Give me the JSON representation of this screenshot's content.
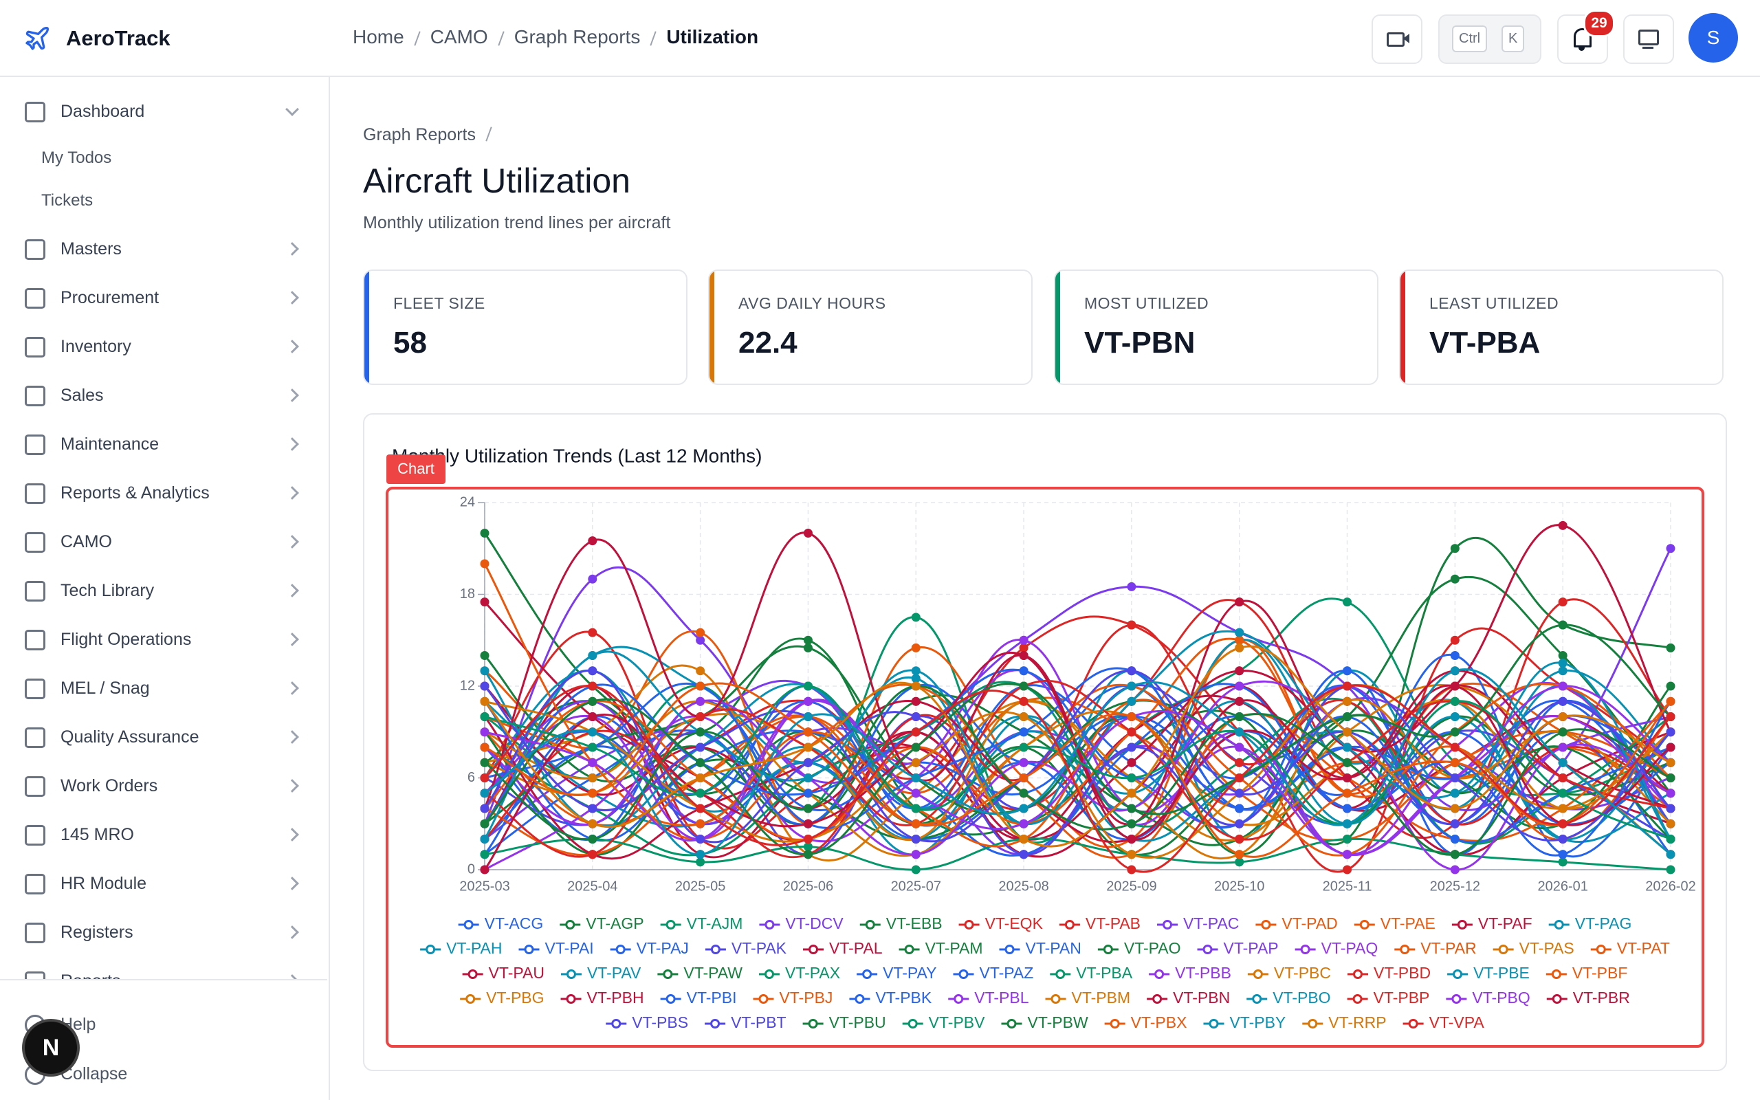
{
  "sidebar": {
    "brand": "AeroTrack",
    "nav": [
      "Dashboard",
      "Masters",
      "Procurement",
      "Inventory",
      "Sales",
      "Maintenance",
      "Reports & Analytics",
      "CAMO",
      "Tech Library",
      "Flight Operations",
      "MEL / Snag",
      "Quality Assurance",
      "Work Orders",
      "145 MRO",
      "HR Module",
      "Registers",
      "Reports"
    ],
    "sub": [
      "My Todos",
      "Tickets"
    ],
    "footer": [
      "Help",
      "Collapse"
    ],
    "badge": "N"
  },
  "header": {
    "breadcrumb": [
      "Home",
      "CAMO",
      "Graph Reports",
      "Utilization"
    ],
    "shortcut": [
      "Ctrl",
      "K"
    ],
    "notifications": 29,
    "avatar": "S"
  },
  "page": {
    "breadcrumb": "Graph Reports",
    "title": "Aircraft Utilization",
    "subtitle": "Monthly utilization trend lines per aircraft",
    "stats": [
      {
        "label": "FLEET SIZE",
        "value": 58,
        "color": "#2563eb"
      },
      {
        "label": "AVG DAILY HOURS",
        "value": 22.4,
        "color": "#d97706"
      },
      {
        "label": "MOST UTILIZED",
        "value": "VT-PBN",
        "color": "#059669"
      },
      {
        "label": "LEAST UTILIZED",
        "value": "VT-PBA",
        "color": "#dc2626"
      }
    ],
    "chart_tag": "Chart"
  },
  "chart_data": {
    "type": "line",
    "title": "Monthly Utilization Trends (Last 12 Months)",
    "categories": [
      "2025-03",
      "2025-04",
      "2025-05",
      "2025-06",
      "2025-07",
      "2025-08",
      "2025-09",
      "2025-10",
      "2025-11",
      "2025-12",
      "2026-01",
      "2026-02"
    ],
    "ylim": [
      0,
      24
    ],
    "yticks": [
      0,
      6,
      12,
      18,
      24
    ],
    "grid": true,
    "legend": "bottom",
    "series": [
      {
        "name": "VT-ACG",
        "color": "#2563eb",
        "values": [
          5,
          9,
          3,
          7,
          2,
          6,
          12,
          4,
          8,
          3,
          10,
          6
        ]
      },
      {
        "name": "VT-AGP",
        "color": "#15803d",
        "values": [
          22,
          12,
          9,
          15,
          4,
          3,
          8,
          10,
          2,
          21,
          16,
          14.5
        ]
      },
      {
        "name": "VT-AJM",
        "color": "#059669",
        "values": [
          10,
          6,
          12,
          4,
          16.5,
          2,
          9,
          13,
          17.5,
          7,
          5,
          8
        ]
      },
      {
        "name": "VT-DCV",
        "color": "#7c3aed",
        "values": [
          3,
          19,
          15,
          6,
          9,
          15,
          18.5,
          15.5,
          12,
          2,
          7,
          21
        ]
      },
      {
        "name": "VT-EBB",
        "color": "#15803d",
        "values": [
          7,
          11,
          5,
          9,
          3,
          8,
          1,
          6,
          10,
          19,
          14,
          5
        ]
      },
      {
        "name": "VT-EQK",
        "color": "#dc2626",
        "values": [
          12,
          4,
          8,
          11,
          6,
          14.5,
          16,
          9,
          0,
          15,
          12,
          7
        ]
      },
      {
        "name": "VT-PAB",
        "color": "#dc2626",
        "values": [
          6,
          15.5,
          2,
          5,
          8,
          4,
          11,
          17.5,
          6,
          3,
          17.5,
          10
        ]
      },
      {
        "name": "VT-PAC",
        "color": "#7c3aed",
        "values": [
          2,
          7,
          10,
          12,
          4,
          9,
          6,
          3,
          11,
          8,
          4,
          6
        ]
      },
      {
        "name": "VT-PAD",
        "color": "#ea580c",
        "values": [
          13,
          8,
          15.5,
          3,
          14.5,
          6,
          2,
          15,
          5,
          12,
          9,
          4
        ]
      },
      {
        "name": "VT-PAE",
        "color": "#ea580c",
        "values": [
          9,
          3,
          6,
          10,
          5,
          11,
          9,
          4,
          7,
          6,
          8,
          5
        ]
      },
      {
        "name": "VT-PAF",
        "color": "#be123c",
        "values": [
          17.5,
          10,
          6,
          2,
          9,
          1,
          5,
          12,
          4,
          12,
          6,
          3
        ]
      },
      {
        "name": "VT-PAG",
        "color": "#0891b2",
        "values": [
          4,
          14,
          12,
          7,
          12.5,
          3,
          13,
          2,
          13,
          5,
          13,
          7
        ]
      },
      {
        "name": "VT-PAH",
        "color": "#0891b2",
        "values": [
          11,
          5,
          3,
          8,
          1,
          10,
          4,
          15,
          7,
          11,
          2,
          9
        ]
      },
      {
        "name": "VT-PAI",
        "color": "#2563eb",
        "values": [
          8,
          2,
          11,
          4,
          7,
          5,
          10,
          6,
          12,
          3,
          9,
          1
        ]
      },
      {
        "name": "VT-PAJ",
        "color": "#2563eb",
        "values": [
          1,
          10,
          4,
          12,
          3,
          7,
          2,
          9,
          5,
          14,
          1,
          8
        ]
      },
      {
        "name": "VT-PAK",
        "color": "#4f46e5",
        "values": [
          6,
          3,
          9,
          1,
          10,
          4,
          12,
          7,
          3,
          9,
          6,
          2
        ]
      },
      {
        "name": "VT-PAL",
        "color": "#be123c",
        "values": [
          3,
          12,
          1,
          6,
          8,
          2,
          9,
          11,
          4,
          7,
          10,
          5
        ]
      },
      {
        "name": "VT-PAM",
        "color": "#15803d",
        "values": [
          14,
          6,
          8,
          3,
          11,
          9,
          4,
          2,
          10,
          6,
          3,
          12
        ]
      },
      {
        "name": "VT-PAN",
        "color": "#2563eb",
        "values": [
          2,
          8,
          5,
          11,
          4,
          12,
          7,
          3,
          13,
          1,
          11,
          4
        ]
      },
      {
        "name": "VT-PAO",
        "color": "#15803d",
        "values": [
          9,
          1,
          7,
          5,
          2,
          6,
          11,
          8,
          3,
          10,
          5,
          7
        ]
      },
      {
        "name": "VT-PAP",
        "color": "#7c3aed",
        "values": [
          5,
          11,
          3,
          9,
          7,
          1,
          8,
          5,
          12,
          4,
          8,
          10
        ]
      },
      {
        "name": "VT-PAQ",
        "color": "#9333ea",
        "values": [
          0,
          4,
          10,
          2,
          6,
          13,
          3,
          9,
          1,
          8,
          12,
          3
        ]
      },
      {
        "name": "VT-PAR",
        "color": "#ea580c",
        "values": [
          10,
          7,
          2,
          8,
          12,
          5,
          1,
          10,
          6,
          2,
          4,
          11
        ]
      },
      {
        "name": "VT-PAS",
        "color": "#d97706",
        "values": [
          7,
          9,
          13,
          1,
          5,
          11,
          6,
          2,
          9,
          12,
          7,
          1
        ]
      },
      {
        "name": "VT-PAT",
        "color": "#ea580c",
        "values": [
          4,
          1,
          6,
          10,
          3,
          8,
          12,
          5,
          2,
          7,
          9,
          6
        ]
      },
      {
        "name": "VT-PAU",
        "color": "#be123c",
        "values": [
          12,
          5,
          8,
          4,
          9,
          2,
          7,
          13,
          8,
          1,
          6,
          9
        ]
      },
      {
        "name": "VT-PAV",
        "color": "#0891b2",
        "values": [
          6,
          13,
          4,
          7,
          2,
          9,
          5,
          11,
          3,
          10,
          2,
          5
        ]
      },
      {
        "name": "VT-PAW",
        "color": "#15803d",
        "values": [
          3,
          8,
          10,
          14.5,
          6,
          4,
          10,
          1,
          9,
          5,
          8,
          2
        ]
      },
      {
        "name": "VT-PAX",
        "color": "#059669",
        "values": [
          8,
          4,
          1,
          6,
          9,
          12,
          3,
          7,
          11,
          2,
          5,
          10
        ]
      },
      {
        "name": "VT-PAY",
        "color": "#2563eb",
        "values": [
          1,
          6,
          9,
          3,
          12,
          7,
          10,
          4,
          8,
          6,
          11,
          3
        ]
      },
      {
        "name": "VT-PAZ",
        "color": "#2563eb",
        "values": [
          11,
          2,
          7,
          9,
          5,
          1,
          8,
          12,
          4,
          9,
          3,
          7
        ]
      },
      {
        "name": "VT-PBA",
        "color": "#059669",
        "values": [
          1,
          2,
          0.5,
          1.5,
          0,
          2,
          1,
          0.5,
          2,
          1,
          0.5,
          0
        ]
      },
      {
        "name": "VT-PBB",
        "color": "#9333ea",
        "values": [
          5,
          10,
          2,
          11,
          7,
          15,
          4,
          8,
          1,
          6,
          10,
          4
        ]
      },
      {
        "name": "VT-PBC",
        "color": "#d97706",
        "values": [
          9,
          6,
          11,
          5,
          1,
          8,
          10,
          3,
          7,
          11,
          4,
          9
        ]
      },
      {
        "name": "VT-PBD",
        "color": "#dc2626",
        "values": [
          2,
          9,
          5,
          1,
          10,
          6,
          16,
          7,
          11,
          3,
          8,
          5
        ]
      },
      {
        "name": "VT-PBE",
        "color": "#0891b2",
        "values": [
          13,
          3,
          8,
          12,
          4,
          10,
          2,
          6,
          9,
          4,
          12,
          2
        ]
      },
      {
        "name": "VT-PBF",
        "color": "#ea580c",
        "values": [
          4,
          11,
          6,
          2,
          8,
          3,
          9,
          15,
          5,
          8,
          2,
          10
        ]
      },
      {
        "name": "VT-PBG",
        "color": "#d97706",
        "values": [
          7,
          5,
          10,
          8,
          2,
          11,
          5,
          1,
          11,
          6,
          9,
          3
        ]
      },
      {
        "name": "VT-PBH",
        "color": "#be123c",
        "values": [
          10,
          1,
          4,
          7,
          11,
          5,
          2,
          9,
          6,
          13,
          7,
          4
        ]
      },
      {
        "name": "VT-PBI",
        "color": "#2563eb",
        "values": [
          6,
          8,
          12,
          3,
          6,
          9,
          13,
          4,
          10,
          2,
          5,
          8
        ]
      },
      {
        "name": "VT-PBJ",
        "color": "#ea580c",
        "values": [
          20,
          7,
          3,
          9,
          4,
          2,
          11,
          6,
          1,
          9,
          12,
          6
        ]
      },
      {
        "name": "VT-PBK",
        "color": "#2563eb",
        "values": [
          3,
          12,
          7,
          5,
          9,
          13,
          6,
          10,
          4,
          7,
          1,
          11
        ]
      },
      {
        "name": "VT-PBL",
        "color": "#9333ea",
        "values": [
          8,
          3,
          11,
          6,
          1,
          7,
          4,
          12,
          9,
          0,
          8,
          5
        ]
      },
      {
        "name": "VT-PBM",
        "color": "#d97706",
        "values": [
          11,
          9,
          4,
          2,
          7,
          10,
          1,
          5,
          12,
          8,
          4,
          9
        ]
      },
      {
        "name": "VT-PBN",
        "color": "#be123c",
        "values": [
          4,
          21.5,
          10,
          22,
          6,
          14,
          3,
          17.5,
          8,
          12,
          22.5,
          9
        ]
      },
      {
        "name": "VT-PBO",
        "color": "#0891b2",
        "values": [
          2,
          14,
          9,
          6,
          13,
          3,
          11,
          15.5,
          8,
          5,
          13.5,
          2
        ]
      },
      {
        "name": "VT-PBP",
        "color": "#dc2626",
        "values": [
          5,
          1,
          10,
          8,
          3,
          12,
          9,
          2,
          7,
          11,
          6,
          4
        ]
      },
      {
        "name": "VT-PBQ",
        "color": "#9333ea",
        "values": [
          9,
          7,
          2,
          11,
          5,
          3,
          10,
          8,
          1,
          6,
          12,
          7
        ]
      },
      {
        "name": "VT-PBR",
        "color": "#be123c",
        "values": [
          0,
          10,
          5,
          3,
          8,
          14,
          2,
          11,
          6,
          12,
          3,
          8
        ]
      },
      {
        "name": "VT-PBS",
        "color": "#4f46e5",
        "values": [
          12,
          4,
          8,
          10,
          2,
          6,
          13,
          5,
          9,
          3,
          11,
          4
        ]
      },
      {
        "name": "VT-PBT",
        "color": "#4f46e5",
        "values": [
          4,
          13,
          2,
          7,
          10,
          1,
          8,
          3,
          12,
          6,
          2,
          9
        ]
      },
      {
        "name": "VT-PBU",
        "color": "#15803d",
        "values": [
          7,
          2,
          9,
          4,
          12,
          5,
          3,
          10,
          7,
          1,
          9,
          6
        ]
      },
      {
        "name": "VT-PBV",
        "color": "#059669",
        "values": [
          10,
          8,
          5,
          12,
          4,
          8,
          6,
          9,
          3,
          11,
          5,
          2
        ]
      },
      {
        "name": "VT-PBW",
        "color": "#15803d",
        "values": [
          3,
          11,
          7,
          1,
          8,
          12,
          4,
          6,
          10,
          9,
          16,
          10
        ]
      },
      {
        "name": "VT-PBX",
        "color": "#ea580c",
        "values": [
          8,
          5,
          12,
          9,
          3,
          6,
          10,
          1,
          5,
          7,
          3,
          11
        ]
      },
      {
        "name": "VT-PBY",
        "color": "#0891b2",
        "values": [
          5,
          9,
          1,
          10,
          6,
          4,
          12,
          9,
          3,
          13,
          7,
          1
        ]
      },
      {
        "name": "VT-RRP",
        "color": "#d97706",
        "values": [
          11,
          3,
          6,
          8,
          12,
          2,
          5,
          14.5,
          9,
          4,
          10,
          7
        ]
      },
      {
        "name": "VT-VPA",
        "color": "#dc2626",
        "values": [
          6,
          12,
          4,
          2,
          9,
          11,
          0,
          6,
          12,
          8,
          3,
          10
        ]
      }
    ]
  }
}
